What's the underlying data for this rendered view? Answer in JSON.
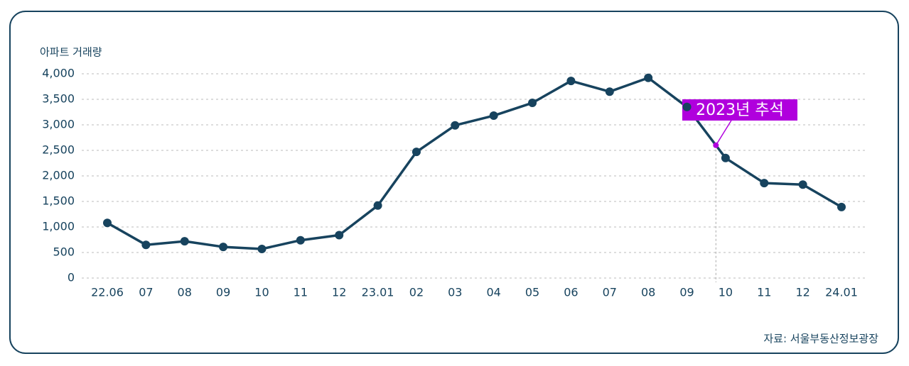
{
  "chart_data": {
    "type": "line",
    "y_axis_label": "아파트 거래량",
    "source": "자료: 서울부동산정보광장",
    "annotation": "2023년 추석",
    "categories": [
      "22.06",
      "07",
      "08",
      "09",
      "10",
      "11",
      "12",
      "23.01",
      "02",
      "03",
      "04",
      "05",
      "06",
      "07",
      "08",
      "09",
      "10",
      "11",
      "12",
      "24.01"
    ],
    "series": [
      {
        "color": "#17435e",
        "values": [
          1080,
          650,
          720,
          610,
          570,
          740,
          840,
          1420,
          2470,
          2990,
          3180,
          3430,
          3860,
          3650,
          3920,
          3350,
          2350,
          1860,
          1830,
          1390
        ]
      }
    ],
    "ylim": [
      0,
      4000
    ],
    "yticks": [
      0,
      500,
      {
        "value": 1000,
        "label": "1,000"
      },
      {
        "value": 1500,
        "label": "1,500"
      },
      {
        "value": 2000,
        "label": "2,000"
      },
      {
        "value": 2500,
        "label": "2,500"
      },
      {
        "value": 3000,
        "label": "3,000"
      },
      {
        "value": 3500,
        "label": "3,500"
      },
      {
        "value": 4000,
        "label": "4,000"
      }
    ],
    "grid": true,
    "annotation_color": "#b000dd"
  }
}
